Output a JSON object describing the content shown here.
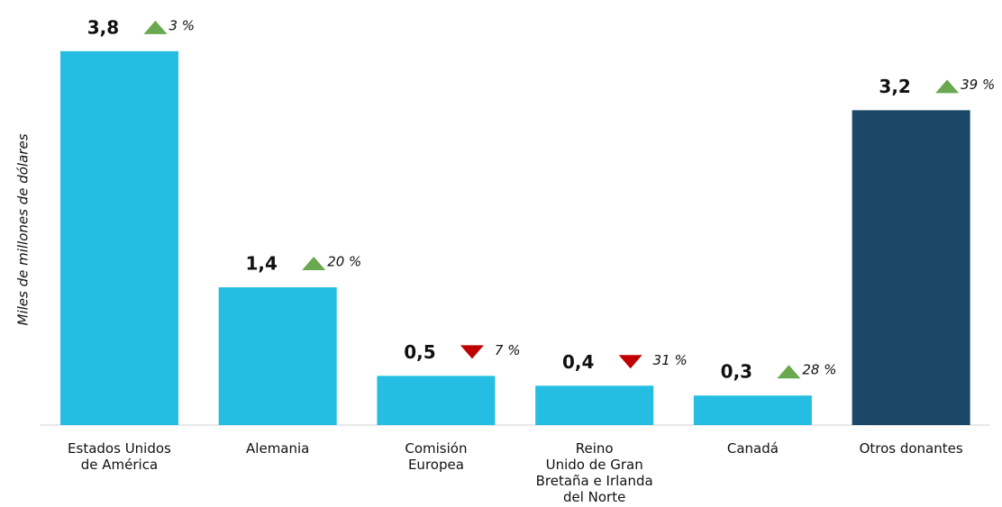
{
  "chart_data": {
    "type": "bar",
    "y_axis_label": "Miles de millones de dólares",
    "categories": [
      [
        "Estados Unidos",
        "de América"
      ],
      [
        "Alemania"
      ],
      [
        "Comisión",
        "Europea"
      ],
      [
        "Reino",
        "Unido de Gran",
        "Bretaña e Irlanda",
        "del Norte"
      ],
      [
        "Canadá"
      ],
      [
        "Otros donantes"
      ]
    ],
    "values": [
      3.8,
      1.4,
      0.5,
      0.4,
      0.3,
      3.2
    ],
    "value_labels": [
      "3,8",
      "1,4",
      "0,5",
      "0,4",
      "0,3",
      "3,2"
    ],
    "changes": [
      3,
      20,
      7,
      31,
      28,
      39
    ],
    "change_labels": [
      "3 %",
      "20 %",
      "7 %",
      "31 %",
      "28 %",
      "39 %"
    ],
    "change_directions": [
      "up",
      "up",
      "down",
      "down",
      "up",
      "up"
    ],
    "colors": [
      "#25bde2",
      "#25bde2",
      "#25bde2",
      "#25bde2",
      "#25bde2",
      "#1c4868"
    ],
    "up_color": "#6aa84f",
    "down_color": "#c00000",
    "ylim": [
      0,
      4
    ]
  }
}
